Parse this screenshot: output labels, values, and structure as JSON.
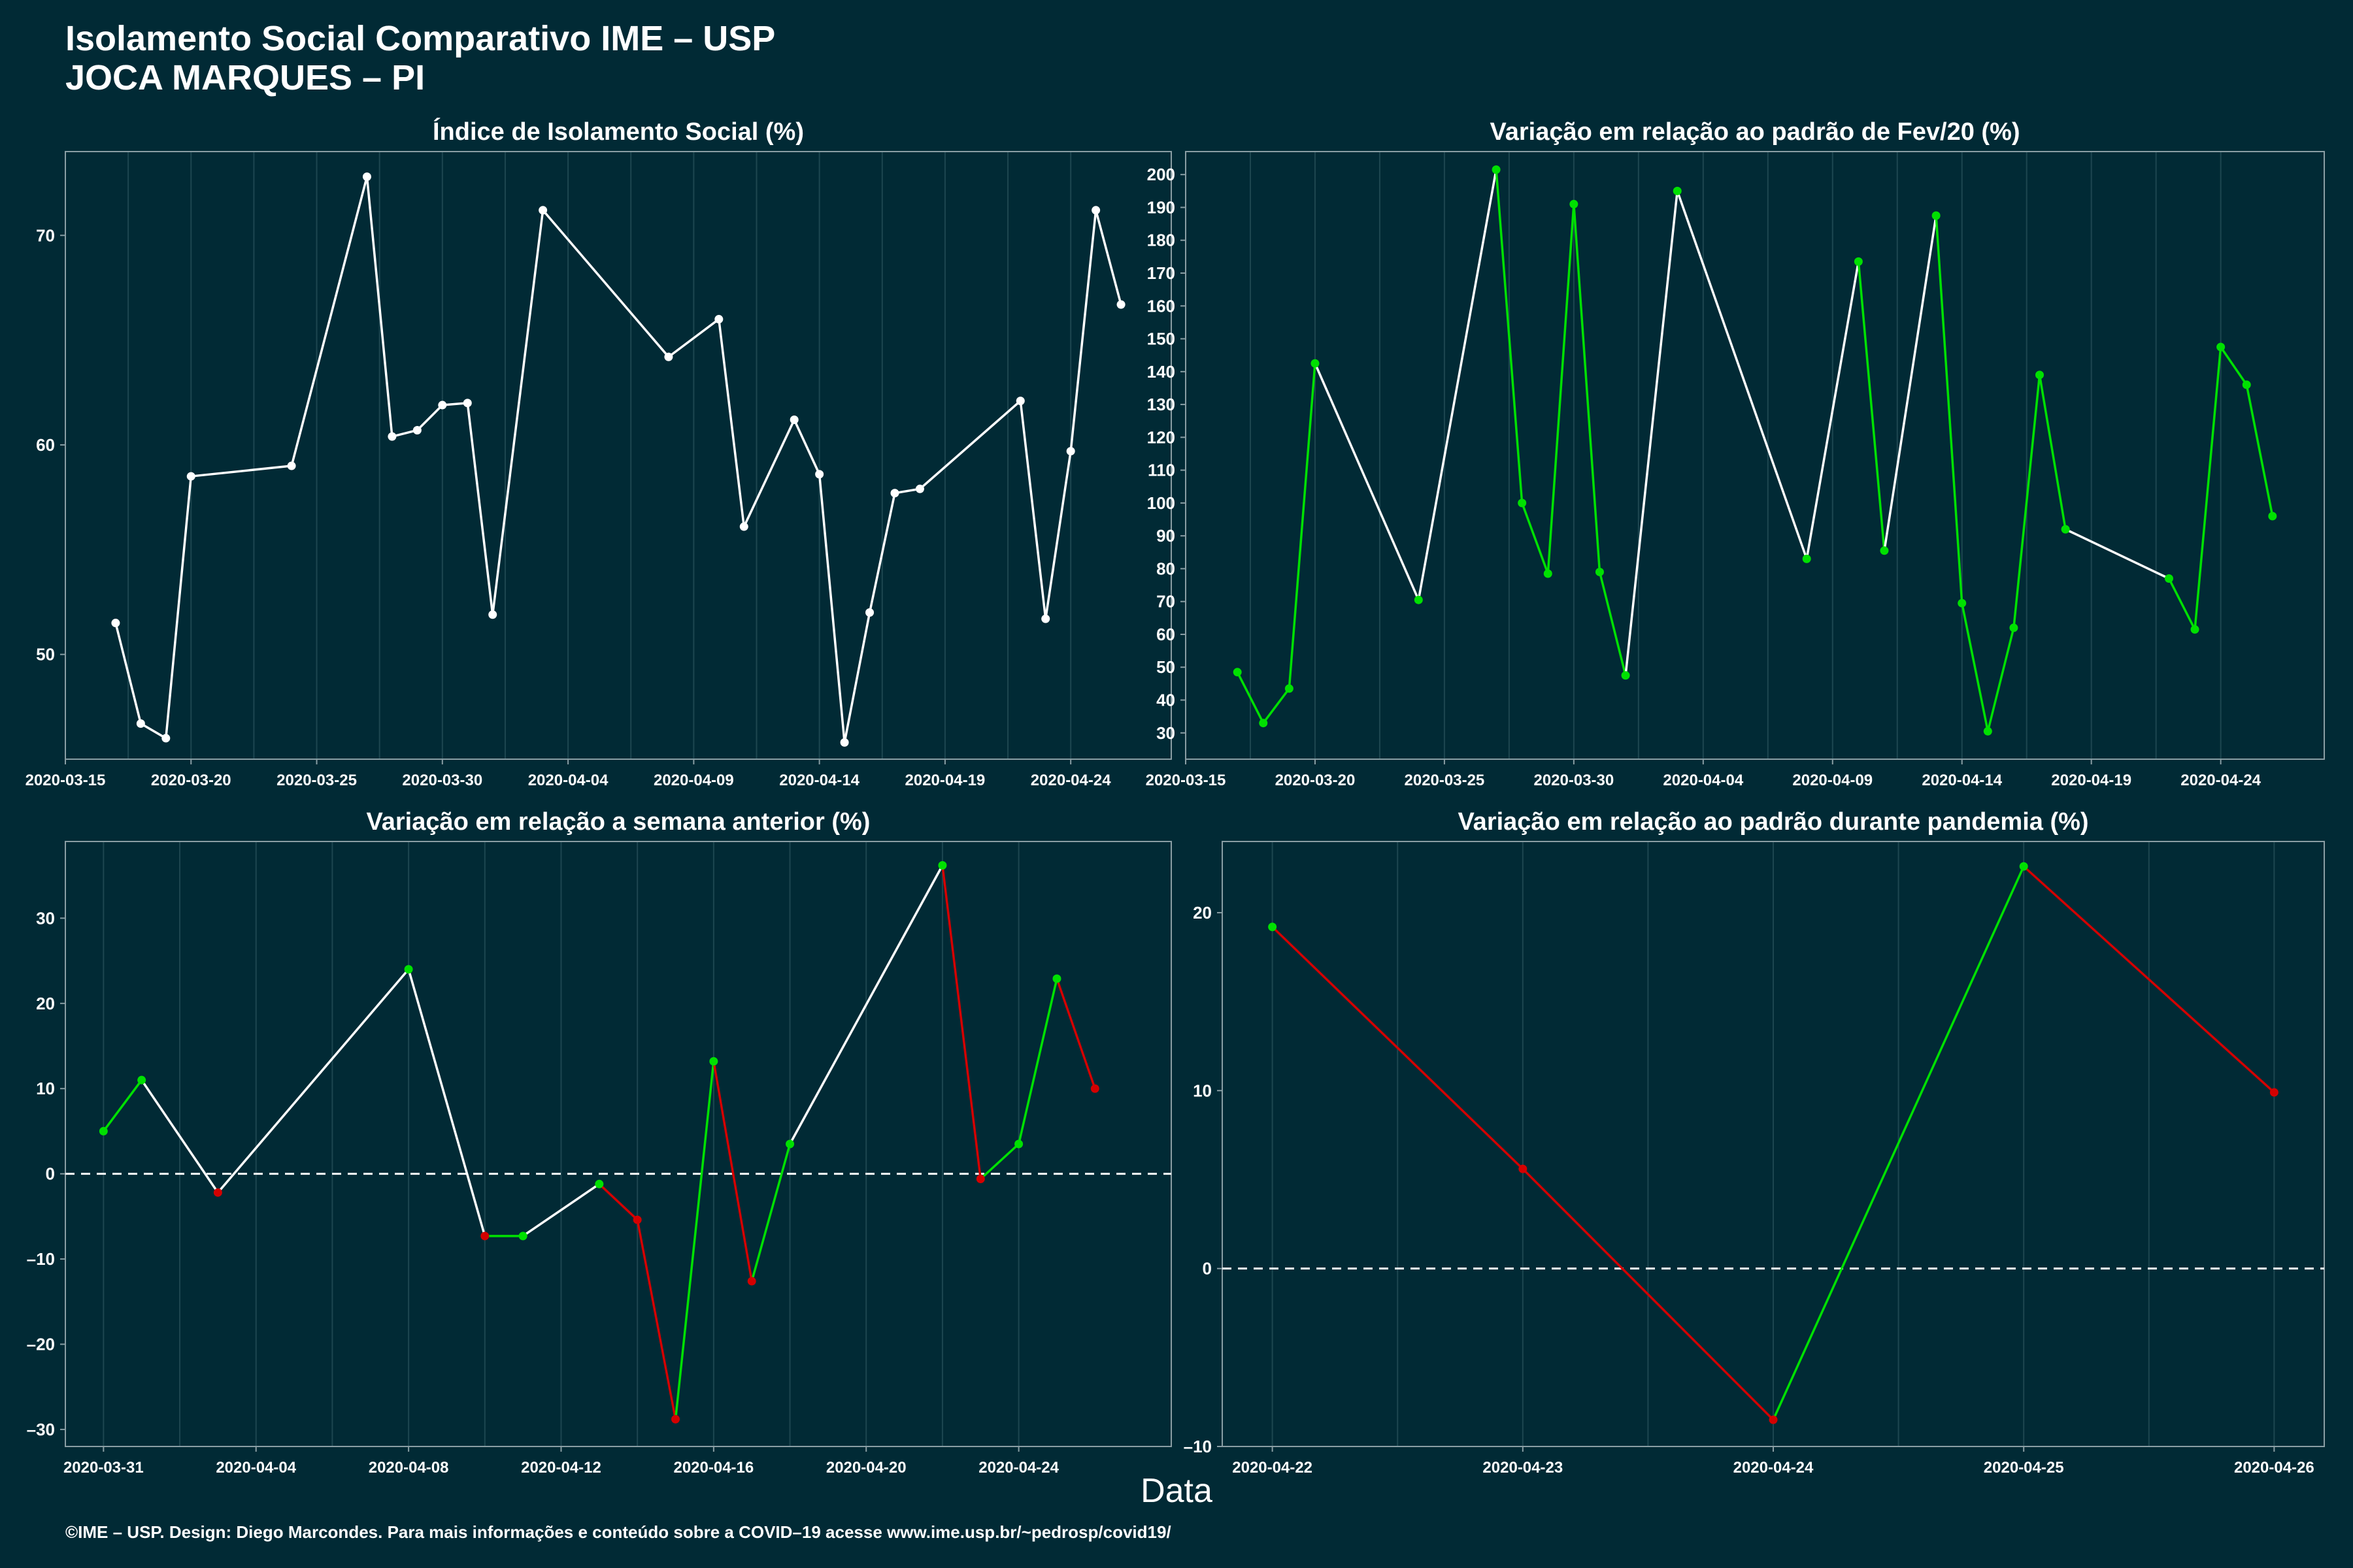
{
  "header": {
    "title_line1": "Isolamento Social Comparativo IME – USP",
    "title_line2": "JOCA MARQUES – PI"
  },
  "xlabel": "Data",
  "footer": "©IME – USP. Design: Diego Marcondes. Para mais informações e conteúdo sobre a COVID–19 acesse www.ime.usp.br/~pedrosp/covid19/",
  "colors": {
    "background": "#012a35",
    "line_neutral": "#ffffff",
    "up": "#00e000",
    "down": "#d40000",
    "grid": "#1d4650",
    "axis": "#8a9ea4"
  },
  "chart_data": [
    {
      "id": "isolation",
      "type": "line",
      "title": "Índice de Isolamento Social (%)",
      "xlim": [
        "2020-03-15",
        "2020-04-28"
      ],
      "ylim": [
        45,
        74
      ],
      "xticks": [
        "2020-03-15",
        "2020-03-20",
        "2020-03-25",
        "2020-03-30",
        "2020-04-04",
        "2020-04-09",
        "2020-04-14",
        "2020-04-19",
        "2020-04-24"
      ],
      "yticks": [
        50,
        60,
        70
      ],
      "zero_line": false,
      "color_mode": "white",
      "x": [
        "2020-03-17",
        "2020-03-18",
        "2020-03-19",
        "2020-03-20",
        "2020-03-24",
        "2020-03-27",
        "2020-03-28",
        "2020-03-29",
        "2020-03-30",
        "2020-03-31",
        "2020-04-01",
        "2020-04-03",
        "2020-04-08",
        "2020-04-10",
        "2020-04-11",
        "2020-04-13",
        "2020-04-14",
        "2020-04-15",
        "2020-04-16",
        "2020-04-17",
        "2020-04-18",
        "2020-04-22",
        "2020-04-23",
        "2020-04-24",
        "2020-04-25",
        "2020-04-26"
      ],
      "y": [
        51.5,
        46.7,
        46.0,
        58.5,
        59.0,
        72.8,
        60.4,
        60.7,
        61.9,
        62.0,
        51.9,
        71.2,
        64.2,
        66.0,
        56.1,
        61.2,
        58.6,
        45.8,
        52.0,
        57.7,
        57.9,
        62.1,
        51.7,
        59.7,
        71.2,
        66.7
      ]
    },
    {
      "id": "feb_variation",
      "type": "line",
      "title": "Variação em relação ao padrão de Fev/20 (%)",
      "xlim": [
        "2020-03-15",
        "2020-04-28"
      ],
      "ylim": [
        22,
        207
      ],
      "xticks": [
        "2020-03-15",
        "2020-03-20",
        "2020-03-25",
        "2020-03-30",
        "2020-04-04",
        "2020-04-09",
        "2020-04-14",
        "2020-04-19",
        "2020-04-24"
      ],
      "yticks": [
        30,
        40,
        50,
        60,
        70,
        80,
        90,
        100,
        110,
        120,
        130,
        140,
        150,
        160,
        170,
        180,
        190,
        200
      ],
      "zero_line": false,
      "color_mode": "gap",
      "x": [
        "2020-03-17",
        "2020-03-18",
        "2020-03-19",
        "2020-03-20",
        "2020-03-24",
        "2020-03-27",
        "2020-03-28",
        "2020-03-29",
        "2020-03-30",
        "2020-03-31",
        "2020-04-01",
        "2020-04-03",
        "2020-04-08",
        "2020-04-10",
        "2020-04-11",
        "2020-04-13",
        "2020-04-14",
        "2020-04-15",
        "2020-04-16",
        "2020-04-17",
        "2020-04-18",
        "2020-04-22",
        "2020-04-23",
        "2020-04-24",
        "2020-04-25",
        "2020-04-26"
      ],
      "y": [
        48.5,
        33.0,
        43.5,
        142.5,
        70.5,
        201.5,
        100.0,
        78.5,
        191.0,
        79.0,
        47.5,
        195.0,
        83.0,
        173.5,
        85.5,
        187.5,
        69.5,
        30.5,
        62.0,
        139.0,
        92.0,
        77.0,
        61.5,
        147.5,
        136.0,
        96.0
      ]
    },
    {
      "id": "weekly_variation",
      "type": "line",
      "title": "Variação em relação a semana anterior (%)",
      "xlim": [
        "2020-03-30",
        "2020-04-28"
      ],
      "ylim": [
        -32,
        39
      ],
      "xticks": [
        "2020-03-31",
        "2020-04-04",
        "2020-04-08",
        "2020-04-12",
        "2020-04-16",
        "2020-04-20",
        "2020-04-24"
      ],
      "yticks": [
        -30,
        -20,
        -10,
        0,
        10,
        20,
        30
      ],
      "zero_line": true,
      "color_mode": "gap_updown",
      "x": [
        "2020-03-31",
        "2020-04-01",
        "2020-04-03",
        "2020-04-08",
        "2020-04-10",
        "2020-04-11",
        "2020-04-13",
        "2020-04-14",
        "2020-04-15",
        "2020-04-16",
        "2020-04-17",
        "2020-04-18",
        "2020-04-22",
        "2020-04-23",
        "2020-04-24",
        "2020-04-25",
        "2020-04-26"
      ],
      "y": [
        5.0,
        11.0,
        -2.2,
        24.0,
        -7.3,
        -7.3,
        -1.2,
        -5.4,
        -28.8,
        13.2,
        -12.6,
        3.5,
        36.2,
        -0.6,
        3.5,
        22.9,
        10.0
      ]
    },
    {
      "id": "pandemic_variation",
      "type": "line",
      "title": "Variação em relação ao padrão durante pandemia (%)",
      "xlim": [
        "2020-04-21.8",
        "2020-04-26.2"
      ],
      "ylim": [
        -10,
        24
      ],
      "xticks": [
        "2020-04-22",
        "2020-04-23",
        "2020-04-24",
        "2020-04-25",
        "2020-04-26"
      ],
      "yticks": [
        -10,
        0,
        10,
        20
      ],
      "zero_line": true,
      "color_mode": "updown",
      "x": [
        "2020-04-22",
        "2020-04-23",
        "2020-04-24",
        "2020-04-25",
        "2020-04-26"
      ],
      "y": [
        19.2,
        5.6,
        -8.5,
        22.6,
        9.9
      ]
    }
  ]
}
